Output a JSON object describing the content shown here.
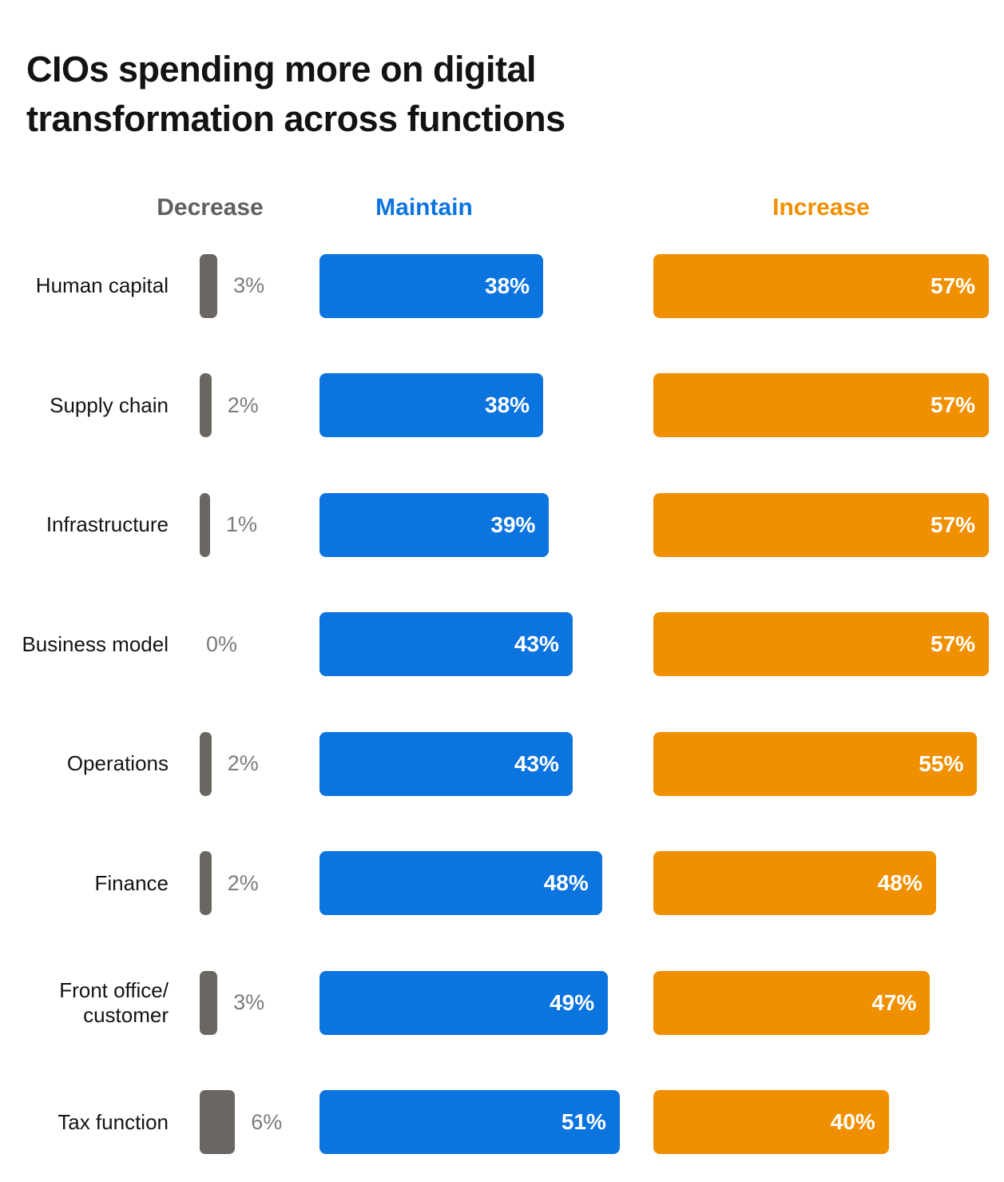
{
  "page": {
    "background": "#ffffff"
  },
  "title": "CIOs spending more on digital transformation across functions",
  "column_headers": [
    {
      "label": "Decrease",
      "color": "#5f6062"
    },
    {
      "label": "Maintain",
      "color": "#0c74de"
    },
    {
      "label": "Increase",
      "color": "#f08f00"
    }
  ],
  "chart_data": {
    "type": "bar",
    "orientation": "horizontal",
    "title": "CIOs spending more on digital transformation across functions",
    "categories": [
      "Human capital",
      "Supply chain",
      "Infrastructure",
      "Business model",
      "Operations",
      "Finance",
      "Front office/ customer",
      "Tax function"
    ],
    "series": [
      {
        "name": "Decrease",
        "color": "#6a6662",
        "value_label_color": "#7b7b78",
        "values": [
          3,
          2,
          1,
          0,
          2,
          2,
          3,
          6
        ]
      },
      {
        "name": "Maintain",
        "color": "#0c74de",
        "value_label_color": "#ffffff",
        "values": [
          38,
          38,
          39,
          43,
          43,
          48,
          49,
          51
        ]
      },
      {
        "name": "Increase",
        "color": "#f08f00",
        "value_label_color": "#ffffff",
        "values": [
          57,
          57,
          57,
          57,
          55,
          48,
          47,
          40
        ]
      }
    ],
    "value_suffix": "%",
    "value_labels": "shown-inside-bars-right-aligned",
    "axis": "none",
    "grid": "off",
    "legend_position": "top-column-headers",
    "xlim": [
      0,
      57
    ]
  }
}
